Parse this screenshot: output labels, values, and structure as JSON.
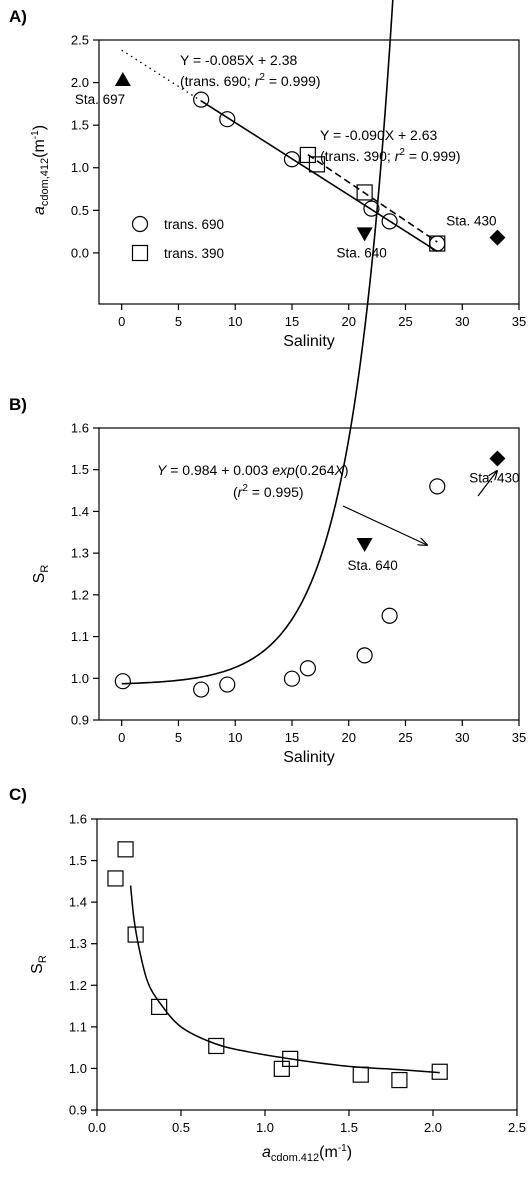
{
  "chart_data": [
    {
      "panel": "A)",
      "type": "scatter",
      "title": "",
      "xlabel": "Salinity",
      "ylabel": {
        "main": "a",
        "sub": "cdom,412",
        "unit_open": "(m",
        "unit_sup": "-1",
        "unit_close": ")"
      },
      "xlim": [
        -2,
        35
      ],
      "ylim": [
        -0.6,
        2.5
      ],
      "xticks": [
        0,
        5,
        10,
        15,
        20,
        25,
        30,
        35
      ],
      "yticks": [
        0.0,
        0.5,
        1.0,
        1.5,
        2.0,
        2.5
      ],
      "ytick_labels": [
        "0.0",
        "0.5",
        "1.0",
        "1.5",
        "2.0",
        "2.5"
      ],
      "grid": false,
      "legend_position": "lower-left",
      "series": [
        {
          "name": "trans. 690",
          "marker": "circle",
          "points": [
            [
              7.0,
              1.8
            ],
            [
              9.3,
              1.57
            ],
            [
              15.0,
              1.1
            ],
            [
              22.0,
              0.52
            ],
            [
              23.6,
              0.37
            ],
            [
              27.8,
              0.11
            ]
          ]
        },
        {
          "name": "trans. 390",
          "marker": "square",
          "points": [
            [
              16.4,
              1.15
            ],
            [
              17.2,
              1.04
            ],
            [
              21.4,
              0.71
            ],
            [
              27.8,
              0.11
            ]
          ]
        }
      ],
      "stations": [
        {
          "label": "Sta. 697",
          "marker": "triangle-up",
          "x": 0.1,
          "y": 2.03
        },
        {
          "label": "Sta. 640",
          "marker": "triangle-down",
          "x": 21.4,
          "y": 0.23
        },
        {
          "label": "Sta. 430",
          "marker": "diamond",
          "x": 33.1,
          "y": 0.18
        }
      ],
      "fits": [
        {
          "slope": -0.085,
          "intercept": 2.38,
          "x_start": 7.0,
          "x_end": 27.8,
          "extension_x_start": 0.0,
          "line": "solid"
        },
        {
          "slope": -0.09,
          "intercept": 2.63,
          "x_start": 16.4,
          "x_end": 27.8,
          "line": "dashed"
        }
      ],
      "annotations": [
        {
          "line1": "Y = -0.085X  + 2.38",
          "line2": {
            "pre": "(trans. 690; ",
            "r": "r",
            "sup": "2",
            "post": " = 0.999)"
          }
        },
        {
          "line1": "Y = -0.090X + 2.63",
          "line2": {
            "pre": "(trans. 390; ",
            "r": "r",
            "sup": "2",
            "post": " = 0.999)"
          }
        }
      ]
    },
    {
      "panel": "B)",
      "type": "scatter",
      "title": "",
      "xlabel": "Salinity",
      "ylabel": {
        "main": "S",
        "sub": "R"
      },
      "xlim": [
        -2,
        35
      ],
      "ylim": [
        0.9,
        1.6
      ],
      "xticks": [
        0,
        5,
        10,
        15,
        20,
        25,
        30,
        35
      ],
      "yticks": [
        0.9,
        1.0,
        1.1,
        1.2,
        1.3,
        1.4,
        1.5,
        1.6
      ],
      "ytick_labels": [
        "0.9",
        "1.0",
        "1.1",
        "1.2",
        "1.3",
        "1.4",
        "1.5",
        "1.6"
      ],
      "grid": false,
      "series": [
        {
          "name": "",
          "marker": "circle",
          "points": [
            [
              0.1,
              0.993
            ],
            [
              7.0,
              0.973
            ],
            [
              9.3,
              0.985
            ],
            [
              15.0,
              0.999
            ],
            [
              16.4,
              1.024
            ],
            [
              21.4,
              1.055
            ],
            [
              23.6,
              1.15
            ],
            [
              27.8,
              1.46
            ]
          ]
        }
      ],
      "stations": [
        {
          "label": "Sta. 640",
          "marker": "triangle-down",
          "x": 21.4,
          "y": 1.322
        },
        {
          "label": "Sta. 430",
          "marker": "diamond",
          "x": 33.1,
          "y": 1.527
        }
      ],
      "fit": {
        "model": "Y = a + b exp(cX)",
        "a": 0.984,
        "b": 0.003,
        "c": 0.264,
        "x_start": 0.0,
        "x_end": 27.8
      },
      "annotations": [
        {
          "line1": {
            "y": "Y",
            "mid": " = 0.984 + 0.003 ",
            "exp": "exp",
            "post": "(0.264",
            "x": "X",
            "close": ")"
          },
          "line2": {
            "pre": "(",
            "r": "r",
            "sup": "2",
            "post": " = 0.995)"
          }
        }
      ]
    },
    {
      "panel": "C)",
      "type": "scatter",
      "title": "",
      "xlabel": {
        "main": "a",
        "sub": "cdom.412",
        "unit_open": "(m",
        "unit_sup": "-1",
        "unit_close": ")"
      },
      "ylabel": {
        "main": "S",
        "sub": "R"
      },
      "xlim": [
        0.0,
        2.5
      ],
      "ylim": [
        0.9,
        1.6
      ],
      "xticks": [
        0.0,
        0.5,
        1.0,
        1.5,
        2.0,
        2.5
      ],
      "xtick_labels": [
        "0.0",
        "0.5",
        "1.0",
        "1.5",
        "2.0",
        "2.5"
      ],
      "yticks": [
        0.9,
        1.0,
        1.1,
        1.2,
        1.3,
        1.4,
        1.5,
        1.6
      ],
      "ytick_labels": [
        "0.9",
        "1.0",
        "1.1",
        "1.2",
        "1.3",
        "1.4",
        "1.5",
        "1.6"
      ],
      "grid": false,
      "series": [
        {
          "name": "",
          "marker": "square",
          "points": [
            [
              0.11,
              1.457
            ],
            [
              0.17,
              1.527
            ],
            [
              0.23,
              1.322
            ],
            [
              0.37,
              1.148
            ],
            [
              0.71,
              1.054
            ],
            [
              1.1,
              0.999
            ],
            [
              1.15,
              1.023
            ],
            [
              1.57,
              0.985
            ],
            [
              1.8,
              0.972
            ],
            [
              2.04,
              0.992
            ]
          ]
        }
      ],
      "fit_curve": [
        [
          0.2,
          1.44
        ],
        [
          0.22,
          1.36
        ],
        [
          0.25,
          1.29
        ],
        [
          0.3,
          1.21
        ],
        [
          0.37,
          1.16
        ],
        [
          0.5,
          1.1
        ],
        [
          0.7,
          1.06
        ],
        [
          0.9,
          1.04
        ],
        [
          1.2,
          1.02
        ],
        [
          1.5,
          1.005
        ],
        [
          1.8,
          0.997
        ],
        [
          2.04,
          0.99
        ]
      ]
    }
  ]
}
